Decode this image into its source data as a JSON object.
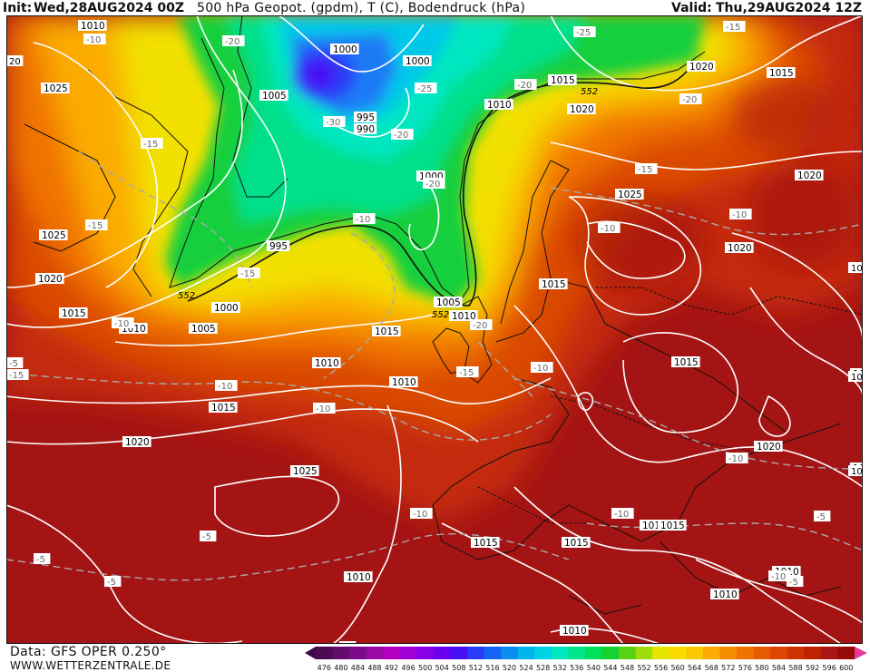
{
  "header": {
    "init_label": "Init:",
    "init_value": "Wed,28AUG2024 00Z",
    "title": "500 hPa Geopot. (gpdm), T (C), Bodendruck (hPa)",
    "valid_label": "Valid:",
    "valid_value": "Thu,29AUG2024 12Z"
  },
  "footer": {
    "data_source": "Data: GFS OPER 0.250°",
    "website": "WWW.WETTERZENTRALE.DE"
  },
  "colorbar": {
    "ticks": [
      "476",
      "480",
      "484",
      "488",
      "492",
      "496",
      "500",
      "504",
      "508",
      "512",
      "516",
      "520",
      "524",
      "528",
      "532",
      "536",
      "540",
      "544",
      "548",
      "552",
      "556",
      "560",
      "564",
      "568",
      "572",
      "576",
      "580",
      "584",
      "588",
      "592",
      "596",
      "600"
    ],
    "colors": [
      "#4d0a55",
      "#640c6e",
      "#7d0b88",
      "#9a0aa5",
      "#b400c0",
      "#a100d6",
      "#8800e6",
      "#6b00f0",
      "#4a10f5",
      "#2a3cf8",
      "#1664f5",
      "#0a8cf0",
      "#00b4ec",
      "#00d2e6",
      "#00e6be",
      "#00e68c",
      "#00e05a",
      "#14d232",
      "#5ad214",
      "#a0dc0a",
      "#e6e600",
      "#fadc00",
      "#fac800",
      "#faaa00",
      "#f58c00",
      "#f07300",
      "#e65a00",
      "#dc4600",
      "#cd3200",
      "#be2300",
      "#aa1414",
      "#960a0a"
    ]
  },
  "pressure_labels": [
    "1010",
    "1000",
    "1005",
    "1015",
    "1025",
    "1000",
    "995",
    "990",
    "1000",
    "1015",
    "1010",
    "1020",
    "1025",
    "1020",
    "1020",
    "1025",
    "1015",
    "995",
    "1000",
    "1010",
    "1005",
    "1015",
    "1010",
    "1005",
    "1010",
    "1015",
    "1020",
    "1020",
    "1015",
    "1015",
    "1010",
    "1025",
    "1020",
    "1010",
    "1015",
    "1015",
    "1015",
    "1010",
    "1010",
    "1010",
    "1010",
    "1020",
    "1010",
    "1010",
    "1015"
  ],
  "temp_labels": [
    "-10",
    "-20",
    "-25",
    "-15",
    "-25",
    "-15",
    "-30",
    "-20",
    "-20",
    "-20",
    "-20",
    "-15",
    "-10",
    "-15",
    "-10",
    "-15",
    "-10",
    "-10",
    "-15",
    "-10",
    "-20",
    "-10",
    "-10",
    "-10",
    "-10",
    "-5",
    "-10",
    "-10",
    "-5",
    "-5",
    "-5",
    "-5",
    "-5",
    "-15",
    "-5"
  ],
  "geopot_labels": [
    "552",
    "552",
    "552"
  ],
  "edge_labels": [
    "20",
    "101",
    "10",
    "10"
  ]
}
